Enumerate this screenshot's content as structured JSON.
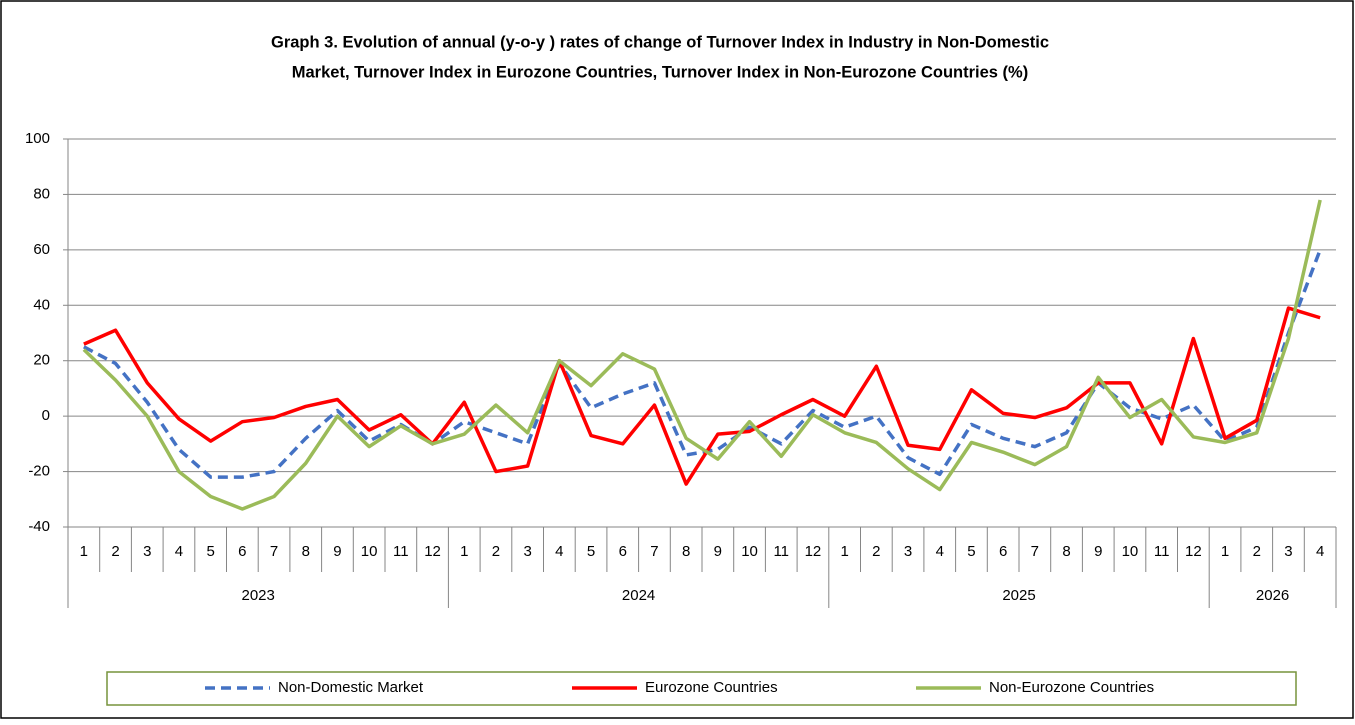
{
  "chart_data": {
    "type": "line",
    "title": [
      "Graph 3. Evolution of annual (y-o-y ) rates of change of Turnover Index  in Industry in Non-Domestic",
      "Market, Turnover Index in Eurozone Countries, Turnover Index in Non-Eurozone Countries (%)"
    ],
    "categories": [
      "1",
      "2",
      "3",
      "4",
      "5",
      "6",
      "7",
      "8",
      "9",
      "10",
      "11",
      "12",
      "1",
      "2",
      "3",
      "4",
      "5",
      "6",
      "7",
      "8",
      "9",
      "10",
      "11",
      "12",
      "1",
      "2",
      "3",
      "4",
      "5",
      "6",
      "7",
      "8",
      "9",
      "10",
      "11",
      "12",
      "1",
      "2",
      "3",
      "4"
    ],
    "groups": [
      "2023",
      "2024",
      "2025",
      "2026"
    ],
    "series": [
      {
        "name": "Non-Domestic Market",
        "color": "#4472c4",
        "style": "dashed",
        "values": [
          25,
          19,
          5,
          -12,
          -22,
          -22,
          -20,
          -8,
          2,
          -9,
          -3,
          -10,
          -2,
          -6,
          -10,
          19,
          3,
          8,
          12,
          -14,
          -12,
          -4,
          -10,
          2,
          -4,
          0,
          -15,
          -21,
          -3,
          -8,
          -11,
          -6,
          12,
          3,
          -1,
          4,
          -9,
          -4,
          30,
          60
        ]
      },
      {
        "name": "Eurozone Countries",
        "color": "#ff0000",
        "style": "solid",
        "values": [
          26,
          31,
          12,
          -1,
          -9,
          -2,
          -0.5,
          3.5,
          6,
          -5,
          0.5,
          -10,
          5,
          -20,
          -18,
          20,
          -7,
          -10,
          4,
          -24.5,
          -6.5,
          -5.5,
          0.5,
          6,
          0,
          18,
          -10.5,
          -12,
          9.5,
          1,
          -0.5,
          3,
          12,
          12,
          -10,
          28,
          -8,
          -1.5,
          39,
          35.5
        ]
      },
      {
        "name": "Non-Eurozone Countries",
        "color": "#9bbb59",
        "style": "solid",
        "values": [
          24,
          13,
          0,
          -20,
          -29,
          -33.5,
          -29,
          -17,
          0,
          -11,
          -3.5,
          -10,
          -6.5,
          4,
          -6,
          20,
          11,
          22.5,
          17,
          -8,
          -15.5,
          -2,
          -14.5,
          0.5,
          -6,
          -9.5,
          -19,
          -26.5,
          -9.5,
          -13,
          -17.5,
          -11,
          14,
          -0.5,
          6,
          -7.5,
          -9.5,
          -6,
          28,
          78
        ]
      }
    ],
    "ylim": [
      -40,
      100
    ],
    "yticks": [
      -40,
      -20,
      0,
      20,
      40,
      60,
      80,
      100
    ],
    "grid": true,
    "legend": "bottom"
  }
}
